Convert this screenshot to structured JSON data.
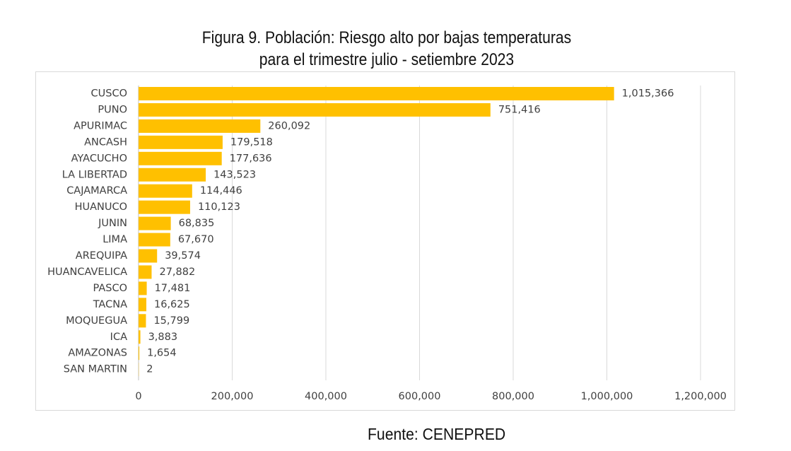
{
  "title_line1": "Figura 9. Población: Riesgo alto por bajas temperaturas",
  "title_line2": "para el trimestre julio - setiembre 2023",
  "source": "Fuente: CENEPRED",
  "chart_data": {
    "type": "bar",
    "orientation": "horizontal",
    "title": "Figura 9. Población: Riesgo alto por bajas temperaturas para el trimestre julio - setiembre 2023",
    "categories": [
      "CUSCO",
      "PUNO",
      "APURIMAC",
      "ANCASH",
      "AYACUCHO",
      "LA LIBERTAD",
      "CAJAMARCA",
      "HUANUCO",
      "JUNIN",
      "LIMA",
      "AREQUIPA",
      "HUANCAVELICA",
      "PASCO",
      "TACNA",
      "MOQUEGUA",
      "ICA",
      "AMAZONAS",
      "SAN MARTIN"
    ],
    "values": [
      1015366,
      751416,
      260092,
      179518,
      177636,
      143523,
      114446,
      110123,
      68835,
      67670,
      39574,
      27882,
      17481,
      16625,
      15799,
      3883,
      1654,
      2
    ],
    "value_labels": [
      "1,015,366",
      "751,416",
      "260,092",
      "179,518",
      "177,636",
      "143,523",
      "114,446",
      "110,123",
      "68,835",
      "67,670",
      "39,574",
      "27,882",
      "17,481",
      "16,625",
      "15,799",
      "3,883",
      "1,654",
      "2"
    ],
    "xlim": [
      0,
      1200000
    ],
    "x_ticks": [
      0,
      200000,
      400000,
      600000,
      800000,
      1000000,
      1200000
    ],
    "x_tick_labels": [
      "0",
      "200,000",
      "400,000",
      "600,000",
      "800,000",
      "1,000,000",
      "1,200,000"
    ],
    "xlabel": "",
    "ylabel": "",
    "grid": "vertical",
    "legend": "none",
    "bar_color": "#FFC000",
    "grid_color": "#d9d9d9"
  }
}
